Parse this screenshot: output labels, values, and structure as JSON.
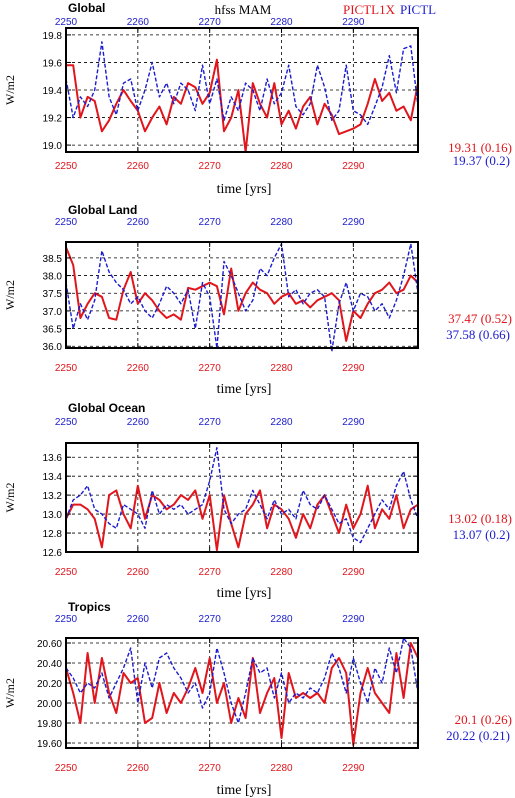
{
  "header": {
    "center_title": "hfss MAM",
    "legend_red": "PICTL1X",
    "legend_blue": "PICTL"
  },
  "colors": {
    "red": "#e0161c",
    "blue": "#1c1ccf",
    "grid": "#000000"
  },
  "x_axis": {
    "xlabel": "time [yrs]",
    "ticks": [
      "2250",
      "2260",
      "2270",
      "2280",
      "2290"
    ],
    "tick_values": [
      2250,
      2260,
      2270,
      2280,
      2290
    ],
    "xlim": [
      2250,
      2299
    ]
  },
  "chart_data": [
    {
      "type": "line",
      "title": "Global",
      "ylabel": "W/m2",
      "ylim": [
        18.95,
        19.85
      ],
      "yticks": [
        "19.0",
        "19.2",
        "19.4",
        "19.6",
        "19.8"
      ],
      "ytick_values": [
        19.0,
        19.2,
        19.4,
        19.6,
        19.8
      ],
      "stats_red": "19.31 (0.16)",
      "stats_blue": "19.37 (0.2)",
      "x": [
        2250,
        2251,
        2252,
        2253,
        2254,
        2255,
        2256,
        2257,
        2258,
        2259,
        2260,
        2261,
        2262,
        2263,
        2264,
        2265,
        2266,
        2267,
        2268,
        2269,
        2270,
        2271,
        2272,
        2273,
        2274,
        2275,
        2276,
        2277,
        2278,
        2279,
        2280,
        2281,
        2282,
        2283,
        2284,
        2285,
        2286,
        2287,
        2288,
        2289,
        2290,
        2291,
        2292,
        2293,
        2294,
        2295,
        2296,
        2297,
        2298,
        2299
      ],
      "series": [
        {
          "color_key": "red",
          "values": [
            19.58,
            19.58,
            19.2,
            19.35,
            19.32,
            19.1,
            19.18,
            19.3,
            19.4,
            19.32,
            19.25,
            19.1,
            19.2,
            19.28,
            19.15,
            19.35,
            19.3,
            19.45,
            19.42,
            19.3,
            19.38,
            19.62,
            19.1,
            19.2,
            19.4,
            18.95,
            19.45,
            19.3,
            19.2,
            19.45,
            19.15,
            19.25,
            19.12,
            19.28,
            19.35,
            19.15,
            19.3,
            19.22,
            19.08,
            19.1,
            19.12,
            19.15,
            19.3,
            19.48,
            19.32,
            19.38,
            19.25,
            19.28,
            19.18,
            19.45
          ]
        },
        {
          "color_key": "blue",
          "values": [
            19.48,
            19.2,
            19.35,
            19.28,
            19.4,
            19.75,
            19.35,
            19.22,
            19.45,
            19.48,
            19.25,
            19.4,
            19.6,
            19.35,
            19.45,
            19.3,
            19.45,
            19.4,
            19.25,
            19.58,
            19.3,
            19.48,
            19.18,
            19.35,
            19.25,
            19.45,
            19.4,
            19.25,
            19.48,
            19.3,
            19.38,
            19.58,
            19.28,
            19.22,
            19.3,
            19.58,
            19.42,
            19.18,
            19.25,
            19.58,
            19.25,
            19.22,
            19.15,
            19.28,
            19.42,
            19.65,
            19.38,
            19.7,
            19.72,
            19.28
          ]
        }
      ]
    },
    {
      "type": "line",
      "title": "Global Land",
      "ylabel": "W/m2",
      "ylim": [
        35.95,
        38.95
      ],
      "yticks": [
        "36.0",
        "36.5",
        "37.0",
        "37.5",
        "38.0",
        "38.5"
      ],
      "ytick_values": [
        36.0,
        36.5,
        37.0,
        37.5,
        38.0,
        38.5
      ],
      "stats_red": "37.47 (0.52)",
      "stats_blue": "37.58 (0.66)",
      "x": [
        2250,
        2251,
        2252,
        2253,
        2254,
        2255,
        2256,
        2257,
        2258,
        2259,
        2260,
        2261,
        2262,
        2263,
        2264,
        2265,
        2266,
        2267,
        2268,
        2269,
        2270,
        2271,
        2272,
        2273,
        2274,
        2275,
        2276,
        2277,
        2278,
        2279,
        2280,
        2281,
        2282,
        2283,
        2284,
        2285,
        2286,
        2287,
        2288,
        2289,
        2290,
        2291,
        2292,
        2293,
        2294,
        2295,
        2296,
        2297,
        2298,
        2299
      ],
      "series": [
        {
          "color_key": "red",
          "values": [
            38.8,
            38.3,
            36.8,
            37.2,
            37.5,
            37.4,
            36.8,
            36.75,
            37.6,
            38.1,
            37.2,
            37.5,
            37.3,
            37.0,
            36.8,
            36.9,
            36.75,
            37.65,
            37.6,
            37.7,
            37.8,
            37.7,
            36.9,
            38.2,
            37.0,
            37.5,
            37.8,
            37.6,
            37.5,
            37.2,
            37.4,
            37.5,
            37.2,
            37.3,
            37.1,
            37.3,
            37.4,
            37.5,
            37.3,
            36.15,
            37.0,
            36.8,
            37.2,
            37.5,
            37.6,
            37.8,
            37.5,
            37.6,
            38.0,
            37.8
          ]
        },
        {
          "color_key": "blue",
          "values": [
            37.8,
            36.5,
            37.2,
            36.75,
            37.3,
            38.7,
            38.1,
            37.8,
            37.6,
            37.2,
            37.4,
            37.0,
            36.8,
            37.2,
            37.7,
            37.5,
            37.2,
            37.6,
            36.5,
            37.8,
            37.4,
            35.95,
            38.4,
            38.0,
            37.5,
            37.0,
            37.3,
            38.2,
            38.0,
            38.5,
            38.9,
            37.4,
            37.6,
            37.2,
            37.5,
            37.6,
            37.4,
            35.85,
            37.2,
            37.8,
            37.0,
            37.5,
            37.4,
            37.0,
            37.2,
            36.8,
            37.3,
            38.0,
            38.9,
            37.5
          ]
        }
      ]
    },
    {
      "type": "line",
      "title": "Global Ocean",
      "ylabel": "W/m2",
      "ylim": [
        12.6,
        13.75
      ],
      "yticks": [
        "12.6",
        "12.8",
        "13.0",
        "13.2",
        "13.4",
        "13.6"
      ],
      "ytick_values": [
        12.6,
        12.8,
        13.0,
        13.2,
        13.4,
        13.6
      ],
      "stats_red": "13.02 (0.18)",
      "stats_blue": "13.07 (0.2)",
      "x": [
        2250,
        2251,
        2252,
        2253,
        2254,
        2255,
        2256,
        2257,
        2258,
        2259,
        2260,
        2261,
        2262,
        2263,
        2264,
        2265,
        2266,
        2267,
        2268,
        2269,
        2270,
        2271,
        2272,
        2273,
        2274,
        2275,
        2276,
        2277,
        2278,
        2279,
        2280,
        2281,
        2282,
        2283,
        2284,
        2285,
        2286,
        2287,
        2288,
        2289,
        2290,
        2291,
        2292,
        2293,
        2294,
        2295,
        2296,
        2297,
        2298,
        2299
      ],
      "series": [
        {
          "color_key": "red",
          "values": [
            12.95,
            13.1,
            13.1,
            13.05,
            12.95,
            12.65,
            13.2,
            13.25,
            13.0,
            12.85,
            13.3,
            12.95,
            13.2,
            13.15,
            13.05,
            13.1,
            13.2,
            13.15,
            13.25,
            12.95,
            13.2,
            12.62,
            13.2,
            12.9,
            12.65,
            13.0,
            13.1,
            13.25,
            12.85,
            13.1,
            13.05,
            12.95,
            12.75,
            13.0,
            12.85,
            13.1,
            13.2,
            13.0,
            12.8,
            13.1,
            12.85,
            13.0,
            13.3,
            12.85,
            13.05,
            12.95,
            13.2,
            12.85,
            13.05,
            13.1
          ]
        },
        {
          "color_key": "blue",
          "values": [
            12.95,
            13.15,
            13.2,
            13.3,
            13.05,
            13.0,
            12.9,
            12.85,
            13.1,
            13.05,
            13.0,
            12.85,
            13.25,
            13.0,
            13.1,
            13.05,
            13.1,
            13.0,
            13.05,
            13.1,
            13.35,
            13.7,
            13.05,
            12.9,
            13.0,
            13.05,
            13.25,
            13.1,
            12.95,
            13.15,
            13.0,
            13.05,
            12.95,
            13.25,
            13.1,
            13.05,
            13.2,
            13.05,
            12.9,
            12.95,
            12.75,
            12.7,
            12.85,
            13.0,
            13.15,
            13.05,
            13.3,
            13.45,
            13.15,
            12.95
          ]
        }
      ]
    },
    {
      "type": "line",
      "title": "Tropics",
      "ylabel": "W/m2",
      "ylim": [
        19.55,
        20.65
      ],
      "yticks": [
        "19.60",
        "19.80",
        "20.00",
        "20.20",
        "20.40",
        "20.60"
      ],
      "ytick_values": [
        19.6,
        19.8,
        20.0,
        20.2,
        20.4,
        20.6
      ],
      "stats_red": "20.1 (0.26)",
      "stats_blue": "20.22 (0.21)",
      "x": [
        2250,
        2251,
        2252,
        2253,
        2254,
        2255,
        2256,
        2257,
        2258,
        2259,
        2260,
        2261,
        2262,
        2263,
        2264,
        2265,
        2266,
        2267,
        2268,
        2269,
        2270,
        2271,
        2272,
        2273,
        2274,
        2275,
        2276,
        2277,
        2278,
        2279,
        2280,
        2281,
        2282,
        2283,
        2284,
        2285,
        2286,
        2287,
        2288,
        2289,
        2290,
        2291,
        2292,
        2293,
        2294,
        2295,
        2296,
        2297,
        2298,
        2299
      ],
      "series": [
        {
          "color_key": "red",
          "values": [
            20.35,
            20.1,
            19.8,
            20.5,
            20.0,
            20.45,
            20.1,
            19.9,
            20.3,
            20.2,
            20.25,
            19.8,
            19.85,
            20.2,
            19.9,
            20.1,
            20.0,
            20.15,
            20.35,
            20.1,
            20.45,
            20.0,
            20.2,
            19.8,
            20.05,
            19.85,
            20.45,
            19.9,
            20.1,
            20.25,
            19.65,
            20.3,
            20.05,
            20.1,
            20.05,
            20.1,
            20.0,
            20.35,
            20.45,
            20.3,
            19.58,
            20.1,
            20.35,
            20.1,
            20.0,
            19.9,
            20.5,
            20.05,
            20.6,
            20.45
          ]
        },
        {
          "color_key": "blue",
          "values": [
            20.35,
            20.25,
            20.1,
            20.2,
            20.15,
            20.3,
            20.05,
            20.2,
            20.35,
            20.55,
            20.0,
            20.4,
            20.15,
            20.45,
            20.5,
            20.35,
            20.25,
            20.1,
            20.2,
            19.95,
            20.1,
            20.55,
            20.3,
            20.0,
            19.8,
            20.1,
            20.45,
            20.3,
            20.35,
            20.05,
            20.3,
            20.0,
            20.1,
            20.05,
            20.15,
            20.1,
            20.25,
            20.5,
            20.35,
            20.1,
            20.45,
            20.2,
            20.0,
            20.35,
            20.2,
            20.55,
            20.3,
            20.65,
            20.55,
            20.1
          ]
        }
      ]
    }
  ]
}
